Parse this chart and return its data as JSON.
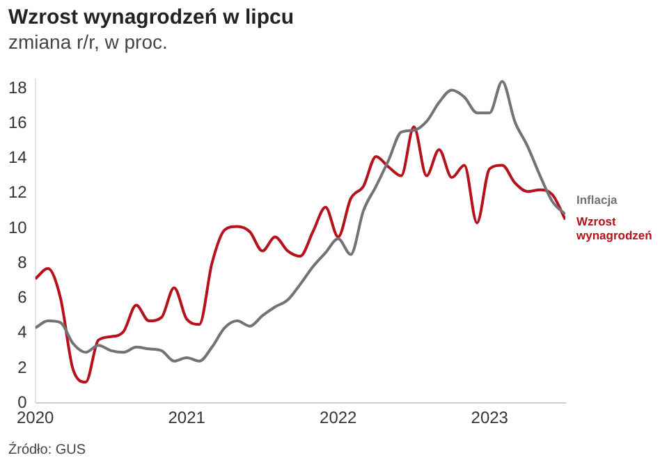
{
  "chart_data": {
    "type": "line",
    "title": "Wzrost wynagrodzeń w lipcu",
    "subtitle": "zmiana r/r, w proc.",
    "annotations": [
      "Źródło: GUS"
    ],
    "x": [
      "2020-01",
      "2020-02",
      "2020-03",
      "2020-04",
      "2020-05",
      "2020-06",
      "2020-07",
      "2020-08",
      "2020-09",
      "2020-10",
      "2020-11",
      "2020-12",
      "2021-01",
      "2021-02",
      "2021-03",
      "2021-04",
      "2021-05",
      "2021-06",
      "2021-07",
      "2021-08",
      "2021-09",
      "2021-10",
      "2021-11",
      "2021-12",
      "2022-01",
      "2022-02",
      "2022-03",
      "2022-04",
      "2022-05",
      "2022-06",
      "2022-07",
      "2022-08",
      "2022-09",
      "2022-10",
      "2022-11",
      "2022-12",
      "2023-01",
      "2023-02",
      "2023-03",
      "2023-04",
      "2023-05",
      "2023-06",
      "2023-07"
    ],
    "series": [
      {
        "name": "Inflacja",
        "color": "#737373",
        "values": [
          4.3,
          4.7,
          4.6,
          3.4,
          2.9,
          3.3,
          3.0,
          2.9,
          3.2,
          3.1,
          3.0,
          2.4,
          2.6,
          2.4,
          3.2,
          4.3,
          4.7,
          4.4,
          5.0,
          5.5,
          5.9,
          6.8,
          7.8,
          8.6,
          9.4,
          8.5,
          11.0,
          12.4,
          13.9,
          15.5,
          15.6,
          16.1,
          17.2,
          17.9,
          17.5,
          16.6,
          16.6,
          18.4,
          16.1,
          14.7,
          13.0,
          11.5,
          10.8
        ]
      },
      {
        "name": "Wzrost wynagrodzeń",
        "color": "#b5121b",
        "values": [
          7.1,
          7.7,
          6.0,
          1.9,
          1.2,
          3.6,
          3.8,
          4.1,
          5.6,
          4.7,
          4.9,
          6.6,
          4.8,
          4.5,
          8.0,
          9.9,
          10.1,
          9.8,
          8.7,
          9.5,
          8.7,
          8.4,
          9.8,
          11.2,
          9.5,
          11.7,
          12.4,
          14.1,
          13.5,
          13.0,
          15.8,
          13.0,
          14.5,
          12.9,
          13.6,
          10.3,
          13.4,
          13.6,
          12.6,
          12.1,
          12.2,
          11.9,
          10.5
        ]
      }
    ],
    "xlim": [
      "2020-01",
      "2023-07"
    ],
    "xticks": [
      {
        "value": "2020",
        "label": "2020"
      },
      {
        "value": "2021",
        "label": "2021"
      },
      {
        "value": "2022",
        "label": "2022"
      },
      {
        "value": "2023",
        "label": "2023"
      }
    ],
    "ylim": [
      0,
      18.5
    ],
    "yticks": [
      0,
      2,
      4,
      6,
      8,
      10,
      12,
      14,
      16,
      18
    ],
    "grid": false,
    "legend": false,
    "marker": "none",
    "line_style": "solid"
  }
}
